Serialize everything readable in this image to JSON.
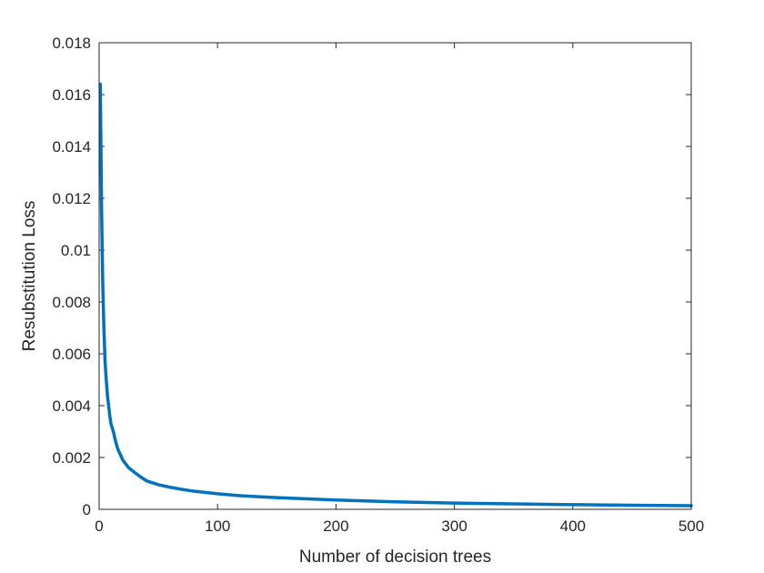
{
  "chart_data": {
    "type": "line",
    "title": "",
    "xlabel": "Number of decision trees",
    "ylabel": "Resubstitution Loss",
    "xlim": [
      0,
      500
    ],
    "ylim": [
      0,
      0.018
    ],
    "xticks": [
      0,
      100,
      200,
      300,
      400,
      500
    ],
    "xtick_labels": [
      "0",
      "100",
      "200",
      "300",
      "400",
      "500"
    ],
    "yticks": [
      0,
      0.002,
      0.004,
      0.006,
      0.008,
      0.01,
      0.012,
      0.014,
      0.016,
      0.018
    ],
    "ytick_labels": [
      "0",
      "0.002",
      "0.004",
      "0.006",
      "0.008",
      "0.01",
      "0.012",
      "0.014",
      "0.016",
      "0.018"
    ],
    "grid": false,
    "legend": "none",
    "line_color": "#0072BD",
    "series": [
      {
        "x": [
          1,
          2,
          3,
          4,
          5,
          6,
          7,
          8,
          9,
          10,
          12,
          14,
          16,
          18,
          20,
          25,
          30,
          35,
          40,
          50,
          60,
          70,
          80,
          100,
          120,
          150,
          200,
          250,
          300,
          350,
          400,
          450,
          500
        ],
        "values": [
          0.0164,
          0.0118,
          0.0088,
          0.007,
          0.0057,
          0.005,
          0.0044,
          0.004,
          0.0036,
          0.0033,
          0.003,
          0.0026,
          0.0023,
          0.0021,
          0.0019,
          0.0016,
          0.00142,
          0.00125,
          0.0011,
          0.00095,
          0.00085,
          0.00077,
          0.0007,
          0.0006,
          0.00052,
          0.00045,
          0.00036,
          0.00029,
          0.00024,
          0.00021,
          0.00018,
          0.00016,
          0.00014
        ]
      }
    ]
  }
}
